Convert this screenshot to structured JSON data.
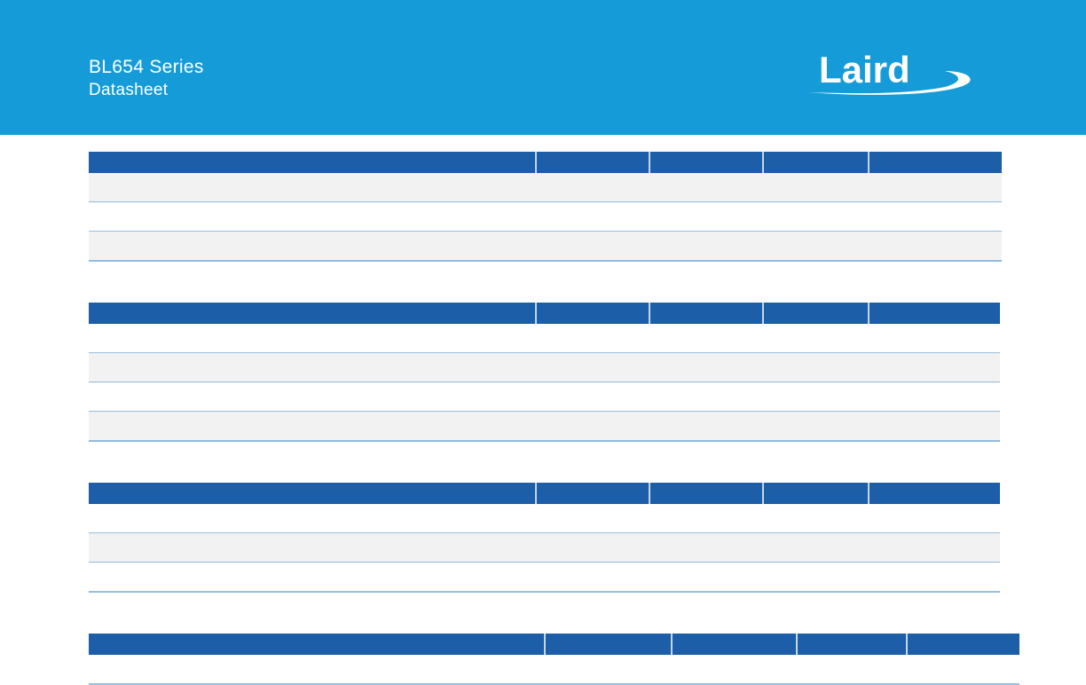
{
  "header": {
    "title": "BL654 Series",
    "subtitle": "Datasheet",
    "logo": "Laird"
  }
}
